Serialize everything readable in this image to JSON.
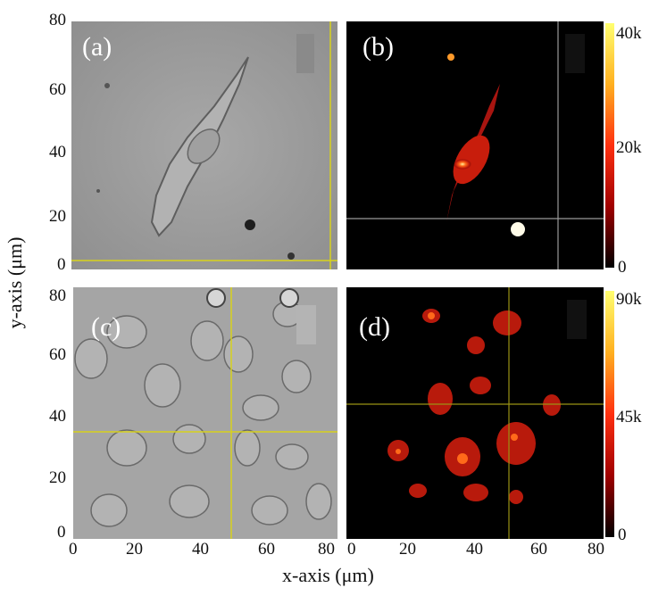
{
  "figure": {
    "panels": [
      {
        "id": "a",
        "label": "(a)",
        "kind": "brightfield"
      },
      {
        "id": "b",
        "label": "(b)",
        "kind": "fluorescence"
      },
      {
        "id": "c",
        "label": "(c)",
        "kind": "brightfield"
      },
      {
        "id": "d",
        "label": "(d)",
        "kind": "fluorescence"
      }
    ],
    "y_axis_label": "y-axis (μm)",
    "x_axis_label": "x-axis (μm)",
    "y_ticks_top": [
      "80",
      "60",
      "40",
      "20",
      "0"
    ],
    "y_ticks_bottom": [
      "80",
      "60",
      "40",
      "20",
      "0"
    ],
    "x_ticks_left": [
      "0",
      "20",
      "40",
      "60",
      "80"
    ],
    "x_ticks_right": [
      "0",
      "20",
      "40",
      "60",
      "80"
    ],
    "colorbar_b": {
      "max": "40k",
      "mid": "20k",
      "min": "0"
    },
    "colorbar_d": {
      "max": "90k",
      "mid": "45k",
      "min": "0"
    },
    "colors": {
      "crosshair_yellow": "#d8d21c",
      "crosshair_gray": "#9a9a9a",
      "brightfield": "#9e9e9e"
    }
  }
}
